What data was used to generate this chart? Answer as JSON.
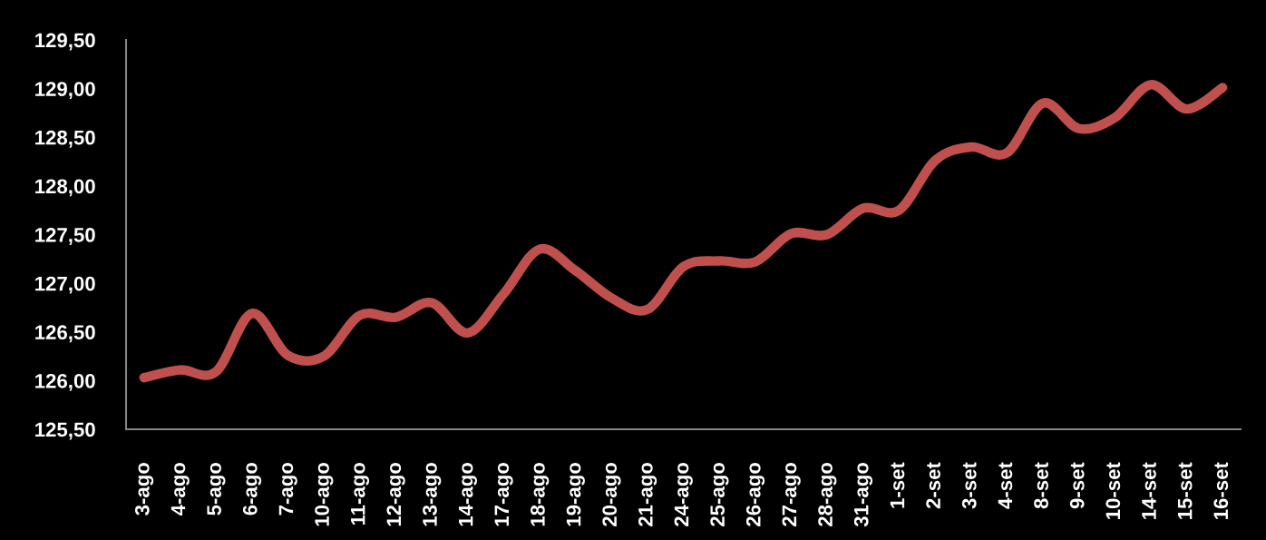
{
  "chart_data": {
    "type": "line",
    "categories": [
      "3-ago",
      "4-ago",
      "5-ago",
      "6-ago",
      "7-ago",
      "10-ago",
      "11-ago",
      "12-ago",
      "13-ago",
      "14-ago",
      "17-ago",
      "18-ago",
      "19-ago",
      "20-ago",
      "21-ago",
      "24-ago",
      "25-ago",
      "26-ago",
      "27-ago",
      "28-ago",
      "31-ago",
      "1-set",
      "2-set",
      "3-set",
      "4-set",
      "8-set",
      "9-set",
      "10-set",
      "14-set",
      "15-set",
      "16-set"
    ],
    "series": [
      {
        "color": "#c0504d",
        "values": [
          126.03,
          126.11,
          126.09,
          126.69,
          126.26,
          126.25,
          126.67,
          126.65,
          126.8,
          126.49,
          126.89,
          127.35,
          127.13,
          126.85,
          126.73,
          127.17,
          127.23,
          127.22,
          127.51,
          127.5,
          127.77,
          127.75,
          128.26,
          128.4,
          128.34,
          128.85,
          128.59,
          128.7,
          129.04,
          128.79,
          129.01
        ]
      }
    ],
    "ylim": [
      125.5,
      129.5
    ],
    "yticks": [
      {
        "value": 125.5,
        "label": "125,50"
      },
      {
        "value": 126,
        "label": "126,00"
      },
      {
        "value": 126.5,
        "label": "126,50"
      },
      {
        "value": 127,
        "label": "127,00"
      },
      {
        "value": 127.5,
        "label": "127,50"
      },
      {
        "value": 128,
        "label": "128,00"
      },
      {
        "value": 128.5,
        "label": "128,50"
      },
      {
        "value": 129,
        "label": "129,00"
      },
      {
        "value": 129.5,
        "label": "129,50"
      }
    ],
    "line_style": "solid"
  }
}
